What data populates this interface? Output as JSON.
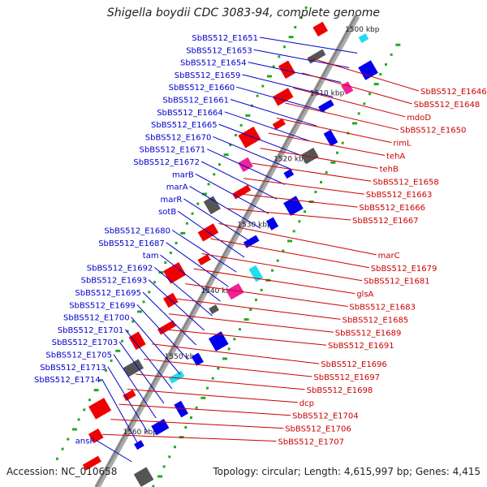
{
  "title": "Shigella boydii CDC 3083-94, complete genome",
  "footer": {
    "accession": "Accession: NC_010658",
    "topology": "Topology: circular; Length: 4,615,997 bp; Genes: 4,415"
  },
  "colors": {
    "left_labels": "#0000cc",
    "right_labels": "#cc0000",
    "backbone": "#888888",
    "ticks": "#22aa22"
  },
  "scale_ticks": [
    "1500 kbp",
    "1510 kbp",
    "1520 kbp",
    "1530 kbp",
    "1540 kbp",
    "1550 kbp",
    "1560 kbp"
  ],
  "left_labels": [
    "SbBS512_E1651",
    "SbBS512_E1653",
    "SbBS512_E1654",
    "SbBS512_E1659",
    "SbBS512_E1660",
    "SbBS512_E1661",
    "SbBS512_E1664",
    "SbBS512_E1665",
    "SbBS512_E1670",
    "SbBS512_E1671",
    "SbBS512_E1672",
    "marB",
    "marA",
    "marR",
    "sotB",
    "SbBS512_E1680",
    "SbBS512_E1687",
    "tam",
    "SbBS512_E1692",
    "SbBS512_E1693",
    "SbBS512_E1695",
    "SbBS512_E1699",
    "SbBS512_E1700",
    "SbBS512_E1701",
    "SbBS512_E1703",
    "SbBS512_E1705",
    "SbBS512_E1713",
    "SbBS512_E1714",
    "ansP"
  ],
  "right_labels": [
    "SbBS512_E1646",
    "SbBS512_E1648",
    "mdoD",
    "SbBS512_E1650",
    "rimL",
    "tehA",
    "tehB",
    "SbBS512_E1658",
    "SbBS512_E1663",
    "SbBS512_E1666",
    "SbBS512_E1667",
    "marC",
    "SbBS512_E1679",
    "SbBS512_E1681",
    "glsA",
    "SbBS512_E1683",
    "SbBS512_E1685",
    "SbBS512_E1689",
    "SbBS512_E1691",
    "SbBS512_E1696",
    "SbBS512_E1697",
    "SbBS512_E1698",
    "dcp",
    "SbBS512_E1704",
    "SbBS512_E1706",
    "SbBS512_E1707"
  ]
}
